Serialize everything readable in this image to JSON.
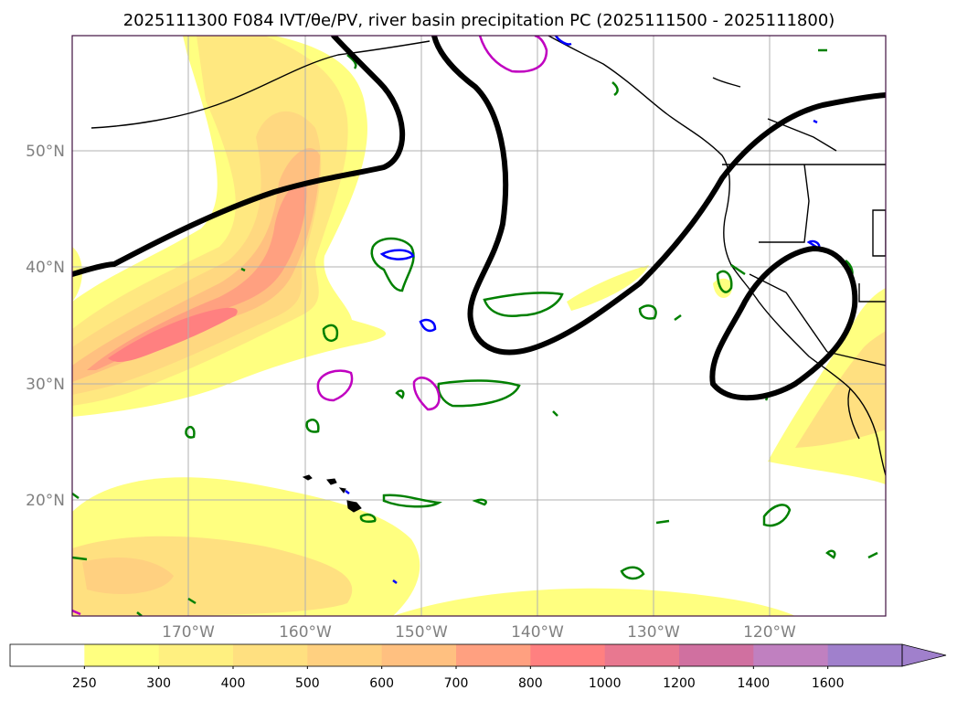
{
  "title": "2025111300 F084 IVT/θe/PV, river basin precipitation PC (2025111500 - 2025111800)",
  "map": {
    "latitude_labels": [
      "50°N",
      "40°N",
      "30°N",
      "20°N"
    ],
    "longitude_labels": [
      "170°W",
      "160°W",
      "150°W",
      "140°W",
      "130°W",
      "120°W"
    ]
  },
  "colorbar": {
    "levels": [
      "250",
      "300",
      "400",
      "500",
      "600",
      "700",
      "800",
      "1000",
      "1200",
      "1400",
      "1600"
    ],
    "colors": [
      "#ffffff",
      "#ffff80",
      "#fff080",
      "#ffe080",
      "#ffd080",
      "#ffc080",
      "#ffa080",
      "#ff8080",
      "#e87890",
      "#d070a0",
      "#c080c0",
      "#a080cc"
    ],
    "extend_color": "#a080cc"
  },
  "colors": {
    "theta_e_contour": "#000000",
    "pv_contour_green": "#008000",
    "pv_contour_magenta": "#c000c0",
    "precip_contour_blue": "#0000ff",
    "coastline": "#000000",
    "grid": "#b0b0b0",
    "frame": "#401040"
  }
}
